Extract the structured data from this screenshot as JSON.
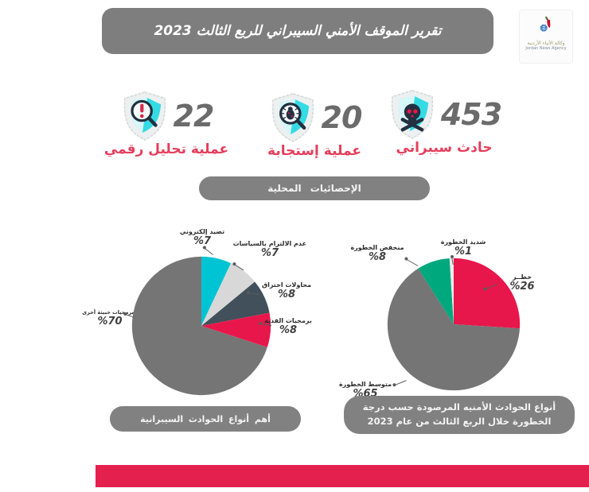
{
  "header": {
    "title": "تقرير الموقف الأمني السيبراني للربع الثالث 2023"
  },
  "logo": {
    "title_ar": "وكالة الأنباء الأردنية",
    "title_en": "Jordan News Agency"
  },
  "stats": [
    {
      "value": "453",
      "label": "حادث سيبراني",
      "icon": "skull-shield-icon"
    },
    {
      "value": "20",
      "label": "عملية إستجابة",
      "icon": "bug-magnifier-shield-icon"
    },
    {
      "value": "22",
      "label": "عملية تحليل رقمي",
      "icon": "alert-magnifier-shield-icon"
    }
  ],
  "section_pill": {
    "label": "الإحصائيات المحلية"
  },
  "chart_data": [
    {
      "type": "pie",
      "title": "أهم أنواع الحوادث السيبرانية",
      "legend_position": "callouts",
      "slices": [
        {
          "label": "تصيد إلكتروني",
          "value": 7,
          "pct": "%7",
          "color": "#00c4d4"
        },
        {
          "label": "عدم الالتزام بالسياسات",
          "value": 7,
          "pct": "%7",
          "color": "#d8d8d8"
        },
        {
          "label": "محاولات اختراق",
          "value": 8,
          "pct": "%8",
          "color": "#41505a"
        },
        {
          "label": "برمجيات الفدية",
          "value": 8,
          "pct": "%8",
          "color": "#e8174b"
        },
        {
          "label": "برمجيات خبيثة أخرى",
          "value": 70,
          "pct": "%70",
          "color": "#757575"
        }
      ]
    },
    {
      "type": "pie",
      "title": "أنواع الحوادث الأمنيه المرصودة حسب درجة الخطورة خلال الربع الثالث من عام 2023",
      "legend_position": "callouts",
      "slices": [
        {
          "label": "خطــر",
          "value": 26,
          "pct": "%26",
          "color": "#e8174b"
        },
        {
          "label": "متوسط الخطورة",
          "value": 65,
          "pct": "%65",
          "color": "#757575"
        },
        {
          "label": "منخفض الخطورة",
          "value": 8,
          "pct": "%8",
          "color": "#00a87e"
        },
        {
          "label": "شديد الخطورة",
          "value": 1,
          "pct": "%1",
          "color": "#ececec"
        }
      ]
    }
  ],
  "colors": {
    "accent_red": "#e53e5b",
    "panel_gray": "#7e7e7e",
    "footer_bar": "#e4204e"
  }
}
